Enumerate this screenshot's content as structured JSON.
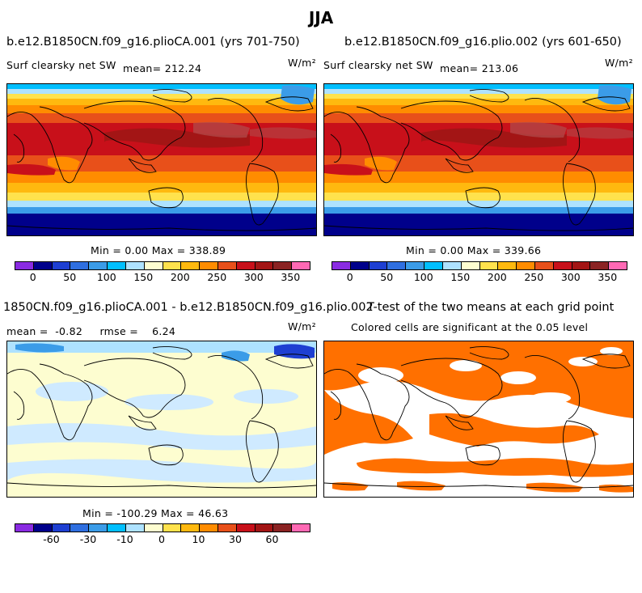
{
  "figure": {
    "title": "JJA"
  },
  "panels": [
    {
      "title": "b.e12.B1850CN.f09_g16.plioCA.001 (yrs 701-750)",
      "left_label": "Surf clearsky net SW",
      "mean_label": "mean= 212.24",
      "units": "W/m²",
      "minmax_label": "Min =    0.00 Max = 338.89"
    },
    {
      "title": "b.e12.B1850CN.f09_g16.plio.002 (yrs 601-650)",
      "left_label": "Surf clearsky net SW",
      "mean_label": "mean= 213.06",
      "units": "W/m²",
      "minmax_label": "Min =    0.00 Max = 339.66"
    },
    {
      "title": "1850CN.f09_g16.plioCA.001 - b.e12.B1850CN.f09_g16.plio.002",
      "stats_label": "mean =  -0.82     rmse =    6.24",
      "units": "W/m²",
      "minmax_label": "Min = -100.29 Max =  46.63"
    },
    {
      "title": "T-test of the two means at each grid point",
      "subtitle": "Colored cells are significant at the 0.05 level"
    }
  ],
  "colorbars": {
    "absolute": {
      "colors": [
        "#8a2be2",
        "#00008b",
        "#1e3fd2",
        "#2f6fe0",
        "#3b9ce8",
        "#00bfff",
        "#aee2ff",
        "#fdfdd0",
        "#ffe24d",
        "#ffb90f",
        "#ff8c00",
        "#e8501a",
        "#c8101a",
        "#a31515",
        "#8b2323",
        "#ff69b4"
      ],
      "ticks": [
        "0",
        "50",
        "100",
        "150",
        "200",
        "250",
        "300",
        "350"
      ]
    },
    "difference": {
      "colors": [
        "#8a2be2",
        "#00008b",
        "#1e3fd2",
        "#2f6fe0",
        "#3b9ce8",
        "#00bfff",
        "#aee2ff",
        "#fdfdd0",
        "#ffe24d",
        "#ffb90f",
        "#ff8c00",
        "#e8501a",
        "#c8101a",
        "#a31515",
        "#8b2323",
        "#ff69b4"
      ],
      "ticks": [
        "-60",
        "-30",
        "-10",
        "0",
        "10",
        "30",
        "60"
      ]
    }
  },
  "colors": {
    "significance": "#ff7000",
    "diff_positive": "#fdfdd0",
    "diff_negative": "#cfeaff"
  }
}
